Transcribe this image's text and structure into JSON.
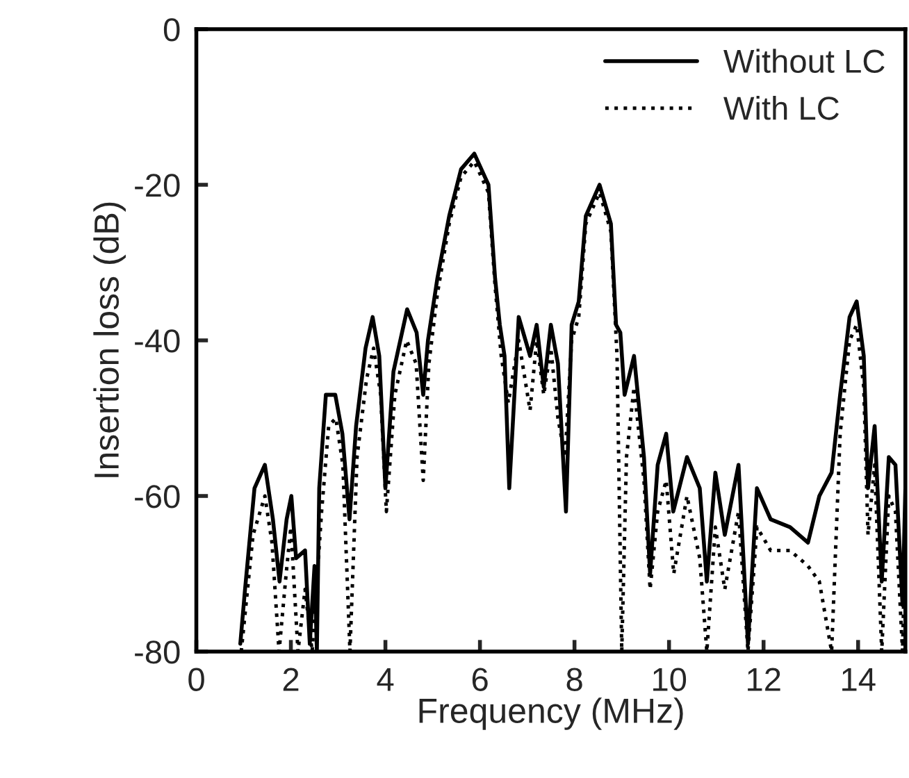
{
  "chart_data": {
    "type": "line",
    "xlabel": "Frequency (MHz)",
    "ylabel": "Insertion loss (dB)",
    "xlim": [
      0,
      15
    ],
    "xticks": [
      0,
      2,
      4,
      6,
      8,
      10,
      12,
      14
    ],
    "ylim": [
      -80,
      0
    ],
    "yticks": [
      -80,
      -60,
      -40,
      -20,
      0
    ],
    "grid": false,
    "legend": "top right",
    "series": [
      {
        "name": "Without LC",
        "color": "#000000",
        "line_style": "solid",
        "x": [
          0.93,
          1.03,
          1.23,
          1.45,
          1.62,
          1.76,
          1.91,
          2.01,
          2.11,
          2.3,
          2.4,
          2.5,
          2.55,
          2.6,
          2.74,
          2.94,
          3.09,
          3.24,
          3.38,
          3.58,
          3.73,
          3.87,
          4.0,
          4.17,
          4.46,
          4.66,
          4.8,
          4.9,
          5.1,
          5.35,
          5.6,
          5.88,
          6.18,
          6.32,
          6.42,
          6.52,
          6.62,
          6.82,
          7.06,
          7.2,
          7.35,
          7.5,
          7.65,
          7.82,
          7.94,
          8.09,
          8.24,
          8.53,
          8.77,
          8.88,
          8.97,
          9.06,
          9.26,
          9.47,
          9.6,
          9.76,
          9.94,
          10.09,
          10.38,
          10.65,
          10.8,
          10.98,
          11.18,
          11.47,
          11.67,
          11.86,
          12.15,
          12.56,
          12.94,
          13.18,
          13.44,
          13.62,
          13.82,
          13.97,
          14.12,
          14.21,
          14.35,
          14.5,
          14.65,
          14.79,
          14.94,
          15.0
        ],
        "values": [
          -79,
          -72,
          -59,
          -56,
          -63,
          -71,
          -63,
          -60,
          -68,
          -67,
          -79,
          -69,
          -80,
          -59,
          -47,
          -47,
          -52,
          -63,
          -51,
          -41,
          -37,
          -42,
          -59,
          -44,
          -36,
          -39,
          -47,
          -40,
          -32,
          -24,
          -18,
          -16,
          -20,
          -32,
          -38,
          -42,
          -59,
          -37,
          -42,
          -38,
          -46,
          -38,
          -43,
          -62,
          -38,
          -35,
          -24,
          -20,
          -25,
          -38,
          -39,
          -47,
          -42,
          -55,
          -70,
          -56,
          -52,
          -62,
          -55,
          -59,
          -71,
          -57,
          -65,
          -56,
          -79,
          -59,
          -63,
          -64,
          -66,
          -60,
          -57,
          -47,
          -37,
          -35,
          -42,
          -59,
          -51,
          -71,
          -55,
          -56,
          -74,
          -59
        ]
      },
      {
        "name": "With LC",
        "color": "#000000",
        "line_style": "dotted",
        "x": [
          0.95,
          1.2,
          1.45,
          1.6,
          1.75,
          1.9,
          2.0,
          2.15,
          2.3,
          2.45,
          2.65,
          2.8,
          2.95,
          3.1,
          3.25,
          3.4,
          3.6,
          3.75,
          3.9,
          4.02,
          4.2,
          4.45,
          4.65,
          4.8,
          4.92,
          5.1,
          5.35,
          5.6,
          5.88,
          6.18,
          6.32,
          6.45,
          6.6,
          6.82,
          7.06,
          7.2,
          7.35,
          7.5,
          7.65,
          7.8,
          7.94,
          8.09,
          8.24,
          8.53,
          8.77,
          8.9,
          9.0,
          9.1,
          9.26,
          9.47,
          9.6,
          9.76,
          9.94,
          10.1,
          10.38,
          10.65,
          10.8,
          10.98,
          11.18,
          11.47,
          11.67,
          11.86,
          12.15,
          12.56,
          12.94,
          13.18,
          13.44,
          13.62,
          13.82,
          13.97,
          14.12,
          14.21,
          14.35,
          14.5,
          14.65,
          14.79,
          14.94,
          15.0
        ],
        "values": [
          -80,
          -65,
          -60,
          -66,
          -80,
          -70,
          -64,
          -80,
          -72,
          -80,
          -62,
          -51,
          -50,
          -56,
          -80,
          -55,
          -45,
          -41,
          -47,
          -62,
          -47,
          -40,
          -43,
          -58,
          -43,
          -34,
          -25,
          -19,
          -17,
          -21,
          -33,
          -42,
          -48,
          -40,
          -49,
          -40,
          -47,
          -41,
          -50,
          -55,
          -40,
          -37,
          -25,
          -21,
          -26,
          -42,
          -80,
          -55,
          -46,
          -58,
          -72,
          -62,
          -58,
          -70,
          -60,
          -68,
          -80,
          -64,
          -72,
          -62,
          -80,
          -64,
          -67,
          -67,
          -69,
          -71,
          -80,
          -52,
          -40,
          -38,
          -46,
          -65,
          -56,
          -80,
          -60,
          -62,
          -80,
          -64
        ]
      }
    ]
  }
}
